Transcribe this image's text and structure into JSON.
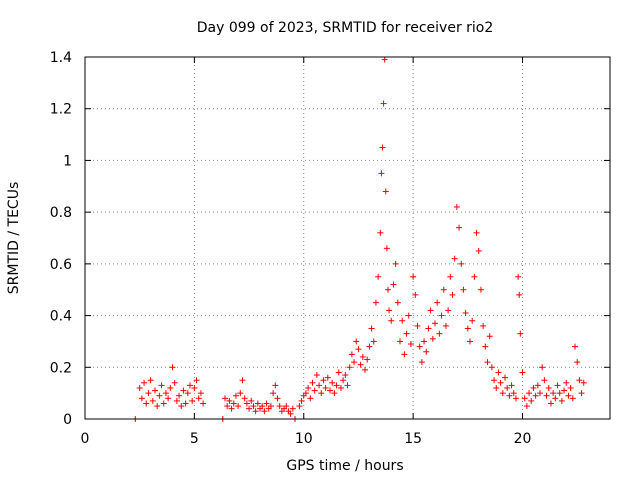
{
  "chart_data": {
    "type": "scatter",
    "title": "Day 099 of 2023, SRMTID for receiver rio2",
    "xlabel": "GPS time / hours",
    "ylabel": "SRMTID / TECUs",
    "xlim": [
      0,
      24
    ],
    "ylim": [
      0,
      1.4
    ],
    "x_ticks": [
      0,
      5,
      10,
      15,
      20
    ],
    "x_tick_labels": [
      "0",
      "5",
      "10",
      "15",
      "20"
    ],
    "y_ticks": [
      0,
      0.2,
      0.4,
      0.6,
      0.8,
      1.0,
      1.2,
      1.4
    ],
    "y_tick_labels": [
      "0",
      "0.2",
      "0.4",
      "0.6",
      "0.8",
      "1",
      "1.2",
      "1.4"
    ],
    "grid": true,
    "marker": "+",
    "colors": {
      "series": "#ff0000",
      "grid": "#888888",
      "axes": "#000000"
    },
    "series": [
      {
        "name": "SRMTID",
        "points": [
          [
            2.3,
            0.0
          ],
          [
            6.3,
            0.0
          ],
          [
            9.6,
            0.0
          ],
          [
            2.5,
            0.12
          ],
          [
            2.6,
            0.08
          ],
          [
            2.7,
            0.14
          ],
          [
            2.8,
            0.06
          ],
          [
            2.9,
            0.1
          ],
          [
            3.0,
            0.15
          ],
          [
            3.1,
            0.07
          ],
          [
            3.2,
            0.11
          ],
          [
            3.3,
            0.05
          ],
          [
            3.4,
            0.09
          ],
          [
            3.5,
            0.13
          ],
          [
            3.6,
            0.06
          ],
          [
            3.7,
            0.1
          ],
          [
            3.8,
            0.08
          ],
          [
            3.9,
            0.12
          ],
          [
            4.0,
            0.2
          ],
          [
            4.1,
            0.14
          ],
          [
            4.2,
            0.07
          ],
          [
            4.3,
            0.09
          ],
          [
            4.4,
            0.05
          ],
          [
            4.5,
            0.11
          ],
          [
            4.6,
            0.06
          ],
          [
            4.7,
            0.1
          ],
          [
            4.8,
            0.13
          ],
          [
            4.9,
            0.07
          ],
          [
            5.0,
            0.12
          ],
          [
            5.1,
            0.15
          ],
          [
            5.2,
            0.08
          ],
          [
            5.3,
            0.1
          ],
          [
            5.4,
            0.06
          ],
          [
            6.4,
            0.08
          ],
          [
            6.5,
            0.05
          ],
          [
            6.6,
            0.07
          ],
          [
            6.7,
            0.04
          ],
          [
            6.8,
            0.06
          ],
          [
            6.9,
            0.09
          ],
          [
            7.0,
            0.05
          ],
          [
            7.1,
            0.1
          ],
          [
            7.2,
            0.15
          ],
          [
            7.3,
            0.08
          ],
          [
            7.4,
            0.06
          ],
          [
            7.5,
            0.04
          ],
          [
            7.6,
            0.07
          ],
          [
            7.7,
            0.05
          ],
          [
            7.8,
            0.03
          ],
          [
            7.9,
            0.06
          ],
          [
            8.0,
            0.04
          ],
          [
            8.1,
            0.05
          ],
          [
            8.2,
            0.03
          ],
          [
            8.3,
            0.06
          ],
          [
            8.4,
            0.04
          ],
          [
            8.5,
            0.05
          ],
          [
            8.6,
            0.1
          ],
          [
            8.7,
            0.13
          ],
          [
            8.8,
            0.08
          ],
          [
            8.9,
            0.05
          ],
          [
            9.0,
            0.03
          ],
          [
            9.1,
            0.04
          ],
          [
            9.2,
            0.05
          ],
          [
            9.3,
            0.03
          ],
          [
            9.4,
            0.02
          ],
          [
            9.5,
            0.04
          ],
          [
            9.8,
            0.05
          ],
          [
            9.9,
            0.07
          ],
          [
            10.0,
            0.09
          ],
          [
            10.1,
            0.1
          ],
          [
            10.2,
            0.12
          ],
          [
            10.3,
            0.08
          ],
          [
            10.4,
            0.14
          ],
          [
            10.5,
            0.11
          ],
          [
            10.6,
            0.17
          ],
          [
            10.7,
            0.13
          ],
          [
            10.8,
            0.1
          ],
          [
            10.9,
            0.15
          ],
          [
            11.0,
            0.12
          ],
          [
            11.1,
            0.16
          ],
          [
            11.2,
            0.11
          ],
          [
            11.3,
            0.14
          ],
          [
            11.4,
            0.1
          ],
          [
            11.5,
            0.13
          ],
          [
            11.6,
            0.18
          ],
          [
            11.7,
            0.12
          ],
          [
            11.8,
            0.15
          ],
          [
            11.9,
            0.17
          ],
          [
            12.0,
            0.13
          ],
          [
            12.1,
            0.2
          ],
          [
            12.2,
            0.25
          ],
          [
            12.3,
            0.22
          ],
          [
            12.4,
            0.3
          ],
          [
            12.5,
            0.27
          ],
          [
            12.6,
            0.21
          ],
          [
            12.7,
            0.24
          ],
          [
            12.8,
            0.19
          ],
          [
            12.9,
            0.23
          ],
          [
            13.0,
            0.28
          ],
          [
            13.1,
            0.35
          ],
          [
            13.2,
            0.3
          ],
          [
            13.3,
            0.45
          ],
          [
            13.4,
            0.55
          ],
          [
            13.5,
            0.72
          ],
          [
            13.55,
            0.95
          ],
          [
            13.6,
            1.05
          ],
          [
            13.65,
            1.22
          ],
          [
            13.7,
            1.39
          ],
          [
            13.75,
            0.88
          ],
          [
            13.8,
            0.66
          ],
          [
            13.85,
            0.5
          ],
          [
            13.9,
            0.42
          ],
          [
            14.0,
            0.38
          ],
          [
            14.1,
            0.52
          ],
          [
            14.2,
            0.6
          ],
          [
            14.3,
            0.45
          ],
          [
            14.4,
            0.3
          ],
          [
            14.5,
            0.38
          ],
          [
            14.6,
            0.25
          ],
          [
            14.7,
            0.33
          ],
          [
            14.8,
            0.4
          ],
          [
            14.9,
            0.29
          ],
          [
            15.0,
            0.55
          ],
          [
            15.1,
            0.48
          ],
          [
            15.2,
            0.36
          ],
          [
            15.3,
            0.28
          ],
          [
            15.4,
            0.22
          ],
          [
            15.5,
            0.3
          ],
          [
            15.6,
            0.26
          ],
          [
            15.7,
            0.35
          ],
          [
            15.8,
            0.42
          ],
          [
            15.9,
            0.31
          ],
          [
            16.0,
            0.37
          ],
          [
            16.1,
            0.45
          ],
          [
            16.2,
            0.33
          ],
          [
            16.3,
            0.4
          ],
          [
            16.4,
            0.5
          ],
          [
            16.5,
            0.36
          ],
          [
            16.6,
            0.42
          ],
          [
            16.7,
            0.55
          ],
          [
            16.8,
            0.48
          ],
          [
            16.9,
            0.62
          ],
          [
            17.0,
            0.82
          ],
          [
            17.1,
            0.74
          ],
          [
            17.2,
            0.6
          ],
          [
            17.3,
            0.5
          ],
          [
            17.4,
            0.41
          ],
          [
            17.5,
            0.35
          ],
          [
            17.6,
            0.3
          ],
          [
            17.7,
            0.38
          ],
          [
            17.8,
            0.55
          ],
          [
            17.9,
            0.72
          ],
          [
            18.0,
            0.65
          ],
          [
            18.1,
            0.5
          ],
          [
            18.2,
            0.36
          ],
          [
            18.3,
            0.28
          ],
          [
            18.4,
            0.22
          ],
          [
            18.5,
            0.32
          ],
          [
            18.6,
            0.2
          ],
          [
            18.7,
            0.15
          ],
          [
            18.8,
            0.12
          ],
          [
            18.9,
            0.18
          ],
          [
            19.0,
            0.14
          ],
          [
            19.1,
            0.1
          ],
          [
            19.2,
            0.16
          ],
          [
            19.3,
            0.12
          ],
          [
            19.4,
            0.09
          ],
          [
            19.5,
            0.13
          ],
          [
            19.6,
            0.1
          ],
          [
            19.7,
            0.08
          ],
          [
            19.8,
            0.55
          ],
          [
            19.85,
            0.48
          ],
          [
            19.9,
            0.33
          ],
          [
            20.0,
            0.18
          ],
          [
            20.1,
            0.08
          ],
          [
            20.2,
            0.05
          ],
          [
            20.3,
            0.1
          ],
          [
            20.4,
            0.07
          ],
          [
            20.5,
            0.12
          ],
          [
            20.6,
            0.09
          ],
          [
            20.7,
            0.13
          ],
          [
            20.8,
            0.1
          ],
          [
            20.9,
            0.2
          ],
          [
            21.0,
            0.15
          ],
          [
            21.1,
            0.09
          ],
          [
            21.2,
            0.12
          ],
          [
            21.3,
            0.06
          ],
          [
            21.4,
            0.1
          ],
          [
            21.5,
            0.08
          ],
          [
            21.6,
            0.13
          ],
          [
            21.7,
            0.1
          ],
          [
            21.8,
            0.07
          ],
          [
            21.9,
            0.11
          ],
          [
            22.0,
            0.14
          ],
          [
            22.1,
            0.09
          ],
          [
            22.2,
            0.12
          ],
          [
            22.3,
            0.08
          ],
          [
            22.4,
            0.28
          ],
          [
            22.5,
            0.22
          ],
          [
            22.6,
            0.15
          ],
          [
            22.7,
            0.1
          ],
          [
            22.8,
            0.14
          ]
        ]
      }
    ]
  }
}
